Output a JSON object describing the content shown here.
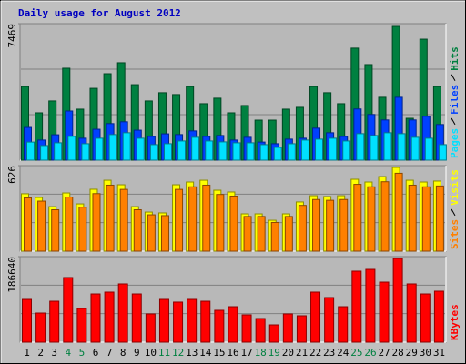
{
  "chart_data": [
    {
      "type": "bar",
      "title": "Daily usage for August 2012",
      "title_color": "#0000c0",
      "ylim": [
        0,
        7469
      ],
      "yticks": [
        7469
      ],
      "series": [
        {
          "name": "Hits",
          "color": "#008040",
          "values": [
            4030,
            2590,
            3240,
            5030,
            2790,
            3930,
            4730,
            5330,
            4130,
            3240,
            3690,
            3590,
            4030,
            3090,
            3390,
            2590,
            2990,
            2190,
            2190,
            2790,
            2890,
            4030,
            3690,
            3090,
            6130,
            5230,
            3440,
            7320,
            2290,
            6620,
            4030
          ]
        },
        {
          "name": "Files",
          "color": "#0040ff",
          "values": [
            1790,
            1100,
            1390,
            2690,
            1200,
            1690,
            2000,
            2100,
            1640,
            1300,
            1440,
            1400,
            1600,
            1300,
            1350,
            1100,
            1250,
            990,
            900,
            1150,
            1200,
            1750,
            1500,
            1300,
            2800,
            2500,
            2200,
            3440,
            2200,
            2400,
            1950
          ]
        },
        {
          "name": "Pages",
          "color": "#00e0ff",
          "values": [
            990,
            800,
            950,
            1300,
            900,
            1200,
            1400,
            1500,
            1200,
            850,
            900,
            1050,
            1250,
            1050,
            1000,
            950,
            950,
            850,
            700,
            900,
            1100,
            1150,
            1200,
            1050,
            1450,
            1350,
            1500,
            1450,
            1250,
            1200,
            850
          ]
        }
      ]
    },
    {
      "type": "bar",
      "ylim": [
        0,
        626
      ],
      "yticks": [
        626
      ],
      "series": [
        {
          "name": "Visits",
          "color": "#ffff00",
          "values": [
            420,
            393,
            326,
            426,
            346,
            453,
            519,
            486,
            326,
            286,
            280,
            486,
            506,
            519,
            446,
            433,
            273,
            273,
            226,
            273,
            360,
            406,
            400,
            406,
            526,
            506,
            546,
            613,
            519,
            506,
            513
          ]
        },
        {
          "name": "Sites",
          "color": "#ff8000",
          "values": [
            390,
            366,
            303,
            396,
            322,
            421,
            483,
            452,
            303,
            266,
            260,
            452,
            471,
            483,
            415,
            403,
            254,
            254,
            210,
            254,
            335,
            378,
            372,
            378,
            489,
            471,
            508,
            570,
            483,
            471,
            477
          ]
        }
      ]
    },
    {
      "type": "bar",
      "ylim": [
        0,
        186640
      ],
      "yticks": [
        186640
      ],
      "categories": [
        "1",
        "2",
        "3",
        "4",
        "5",
        "6",
        "7",
        "8",
        "9",
        "10",
        "11",
        "12",
        "13",
        "14",
        "15",
        "16",
        "17",
        "18",
        "19",
        "20",
        "21",
        "22",
        "23",
        "24",
        "25",
        "26",
        "27",
        "28",
        "29",
        "30",
        "31"
      ],
      "category_colors": [
        "#000000",
        "#000000",
        "#000000",
        "#008040",
        "#008040",
        "#000000",
        "#000000",
        "#000000",
        "#000000",
        "#000000",
        "#008040",
        "#008040",
        "#000000",
        "#000000",
        "#000000",
        "#000000",
        "#000000",
        "#008040",
        "#008040",
        "#000000",
        "#000000",
        "#000000",
        "#000000",
        "#000000",
        "#008040",
        "#008040",
        "#000000",
        "#000000",
        "#000000",
        "#000000",
        "#000000"
      ],
      "series": [
        {
          "name": "KBytes",
          "color": "#ff0000",
          "values": [
            93300,
            63500,
            89300,
            141000,
            73500,
            105200,
            109200,
            127100,
            105200,
            61600,
            93300,
            87400,
            93300,
            89300,
            69500,
            77400,
            59600,
            51600,
            37700,
            61600,
            57600,
            109200,
            97300,
            77400,
            154900,
            158800,
            131000,
            182700,
            127100,
            105200,
            111200
          ]
        }
      ]
    }
  ]
}
